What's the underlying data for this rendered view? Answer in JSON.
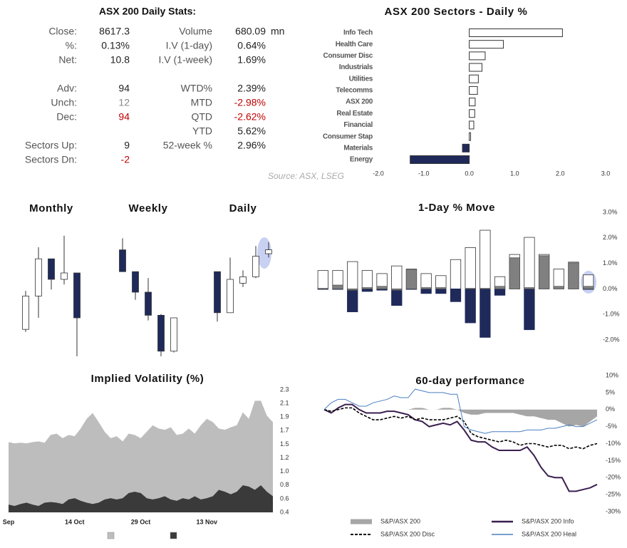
{
  "stats": {
    "title": "ASX 200 Daily Stats:",
    "rows": [
      {
        "left": {
          "label": "Close:",
          "value": "8617.3"
        },
        "right": {
          "label": "Volume",
          "value": "680.09",
          "unit": "mn"
        }
      },
      {
        "left": {
          "label": "%:",
          "value": "0.13%"
        },
        "right": {
          "label": "I.V (1-day)",
          "value": "0.64%"
        }
      },
      {
        "left": {
          "label": "Net:",
          "value": "10.8"
        },
        "right": {
          "label": "I.V (1-week)",
          "value": "1.69%"
        }
      },
      {
        "left": {
          "label": "Adv:",
          "value": "94"
        },
        "right": {
          "label": "WTD%",
          "value": "2.39%"
        }
      },
      {
        "left": {
          "label": "Unch:",
          "value": "12",
          "color": "#888888"
        },
        "right": {
          "label": "MTD",
          "value": "-2.98%",
          "color": "#c00000"
        }
      },
      {
        "left": {
          "label": "Dec:",
          "value": "94",
          "color": "#c00000"
        },
        "right": {
          "label": "QTD",
          "value": "-2.62%",
          "color": "#c00000"
        }
      },
      {
        "right": {
          "label": "YTD",
          "value": "5.62%"
        }
      },
      {
        "left": {
          "label": "Sectors Up:",
          "value": "9"
        },
        "right": {
          "label": "52-week %",
          "value": "2.96%"
        }
      },
      {
        "left": {
          "label": "Sectors Dn:",
          "value": "-2",
          "color": "#c00000"
        }
      }
    ]
  },
  "source": "Source: ASX, LSEG",
  "chart_data": [
    {
      "type": "bar",
      "orientation": "horizontal",
      "title": "ASX 200 Sectors - Daily %",
      "categories": [
        "Info Tech",
        "Health Care",
        "Consumer Disc",
        "Industrials",
        "Utilities",
        "Telecomms",
        "ASX 200",
        "Real Estate",
        "Financial",
        "Consumer Stap",
        "Materials",
        "Energy"
      ],
      "values": [
        2.05,
        0.75,
        0.35,
        0.28,
        0.2,
        0.18,
        0.13,
        0.12,
        0.1,
        0.03,
        -0.15,
        -1.3
      ],
      "positive_color": "#ffffff",
      "negative_color": "#1f2a5a",
      "edgecolor": "#333333",
      "xlim": [
        -2,
        3
      ],
      "xticks": [
        {
          "value": -2,
          "label": "-2.0"
        },
        {
          "value": -1,
          "label": "-1.0"
        },
        {
          "value": 0,
          "label": "0.0"
        },
        {
          "value": 1,
          "label": "1.0"
        },
        {
          "value": 2,
          "label": "2.0"
        },
        {
          "value": 3,
          "label": "3.0"
        }
      ]
    },
    {
      "type": "candlestick",
      "title": "Monthly",
      "ylim": [
        0,
        100
      ],
      "up_color": "#ffffff",
      "down_color": "#1f2a5a",
      "edgecolor": "#333333",
      "candles": [
        {
          "open": 21,
          "high": 51,
          "low": 19,
          "close": 47
        },
        {
          "open": 47,
          "high": 85,
          "low": 30,
          "close": 76
        },
        {
          "open": 76,
          "high": 76,
          "low": 52,
          "close": 60
        },
        {
          "open": 60,
          "high": 94,
          "low": 56,
          "close": 65
        },
        {
          "open": 65,
          "high": 65,
          "low": 0,
          "close": 30
        }
      ]
    },
    {
      "type": "candlestick",
      "title": "Weekly",
      "ylim": [
        0,
        100
      ],
      "up_color": "#ffffff",
      "down_color": "#1f2a5a",
      "edgecolor": "#333333",
      "candles": [
        {
          "open": 83,
          "high": 92,
          "low": 66,
          "close": 66
        },
        {
          "open": 66,
          "high": 66,
          "low": 44,
          "close": 50
        },
        {
          "open": 50,
          "high": 61,
          "low": 28,
          "close": 32
        },
        {
          "open": 32,
          "high": 33,
          "low": 0,
          "close": 4
        },
        {
          "open": 4,
          "high": 30,
          "low": 3,
          "close": 30
        }
      ]
    },
    {
      "type": "candlestick",
      "title": "Daily",
      "ylim": [
        0,
        100
      ],
      "up_color": "#ffffff",
      "down_color": "#1f2a5a",
      "edgecolor": "#333333",
      "candles": [
        {
          "open": 66,
          "high": 66,
          "low": 27,
          "close": 34
        },
        {
          "open": 34,
          "high": 77,
          "low": 34,
          "close": 60
        },
        {
          "open": 57,
          "high": 67,
          "low": 54,
          "close": 62
        },
        {
          "open": 62,
          "high": 86,
          "low": 61,
          "close": 78
        },
        {
          "open": 80,
          "high": 89,
          "low": 77,
          "close": 83
        }
      ]
    },
    {
      "type": "bar",
      "orientation": "vertical",
      "title": "1-Day % Move",
      "series": [
        {
          "color": "#ffffff",
          "edgecolor": "#333333",
          "values": [
            0.72,
            0.72,
            1.07,
            0.72,
            0.6,
            0.9,
            0.78,
            0.6,
            0.52,
            1.15,
            1.62,
            2.3,
            0.48,
            1.35,
            2.02,
            1.35,
            0.78,
            1.05,
            0.55
          ]
        },
        {
          "color": "#1f2a5a",
          "edgecolor": "#1f2a5a",
          "values": [
            -0.02,
            -0.02,
            -0.9,
            -0.1,
            -0.05,
            -0.65,
            -0.02,
            -0.18,
            -0.18,
            -0.5,
            -1.33,
            -1.9,
            -0.25,
            0,
            -1.6,
            0,
            0,
            0,
            -0.02
          ]
        },
        {
          "color": "#808080",
          "edgecolor": "#555555",
          "values": [
            0.02,
            0.15,
            -0.05,
            0.05,
            0.1,
            -0.05,
            0.75,
            0.05,
            0.05,
            0,
            0.02,
            0.02,
            0.1,
            1.22,
            0.05,
            1.3,
            0.1,
            1.02,
            0.1
          ]
        }
      ],
      "ylim": [
        -2,
        3
      ],
      "yticks": [
        {
          "value": 3,
          "label": "3.0%"
        },
        {
          "value": 2,
          "label": "2.0%"
        },
        {
          "value": 1,
          "label": "1.0%"
        },
        {
          "value": 0,
          "label": "0.0%"
        },
        {
          "value": -1,
          "label": "-1.0%"
        },
        {
          "value": -2,
          "label": "-2.0%"
        }
      ]
    },
    {
      "type": "area",
      "title": "Implied Volatility (%)",
      "categories": [
        "Sep",
        null,
        null,
        null,
        null,
        null,
        null,
        null,
        null,
        null,
        null,
        "14 Oct",
        null,
        null,
        null,
        null,
        null,
        null,
        null,
        null,
        null,
        null,
        "29 Oct",
        null,
        null,
        null,
        null,
        null,
        null,
        null,
        null,
        null,
        null,
        "13 Nov",
        null,
        null,
        null,
        null,
        null,
        null,
        null,
        null,
        null,
        null,
        null
      ],
      "series": [
        {
          "color": "#bdbdbd",
          "values": [
            1.49,
            1.47,
            1.48,
            1.47,
            1.49,
            1.5,
            1.48,
            1.6,
            1.62,
            1.55,
            1.6,
            1.58,
            1.7,
            1.85,
            1.94,
            1.8,
            1.65,
            1.55,
            1.58,
            1.5,
            1.62,
            1.6,
            1.55,
            1.65,
            1.75,
            1.7,
            1.68,
            1.72,
            1.6,
            1.62,
            1.7,
            1.62,
            1.75,
            1.85,
            1.8,
            1.7,
            1.68,
            1.72,
            1.75,
            1.95,
            1.85,
            2.13,
            2.13,
            1.9,
            1.8
          ]
        },
        {
          "color": "#3a3a3a",
          "values": [
            0.52,
            0.5,
            0.53,
            0.55,
            0.52,
            0.5,
            0.55,
            0.56,
            0.55,
            0.53,
            0.6,
            0.62,
            0.58,
            0.55,
            0.53,
            0.55,
            0.6,
            0.62,
            0.6,
            0.62,
            0.7,
            0.72,
            0.7,
            0.62,
            0.6,
            0.62,
            0.65,
            0.6,
            0.58,
            0.62,
            0.6,
            0.65,
            0.6,
            0.62,
            0.65,
            0.75,
            0.72,
            0.68,
            0.72,
            0.82,
            0.8,
            0.75,
            0.82,
            0.72,
            0.65
          ]
        }
      ],
      "ylim": [
        0.4,
        2.3
      ],
      "yticks": [
        {
          "value": 2.3,
          "label": "2.3"
        },
        {
          "value": 2.089,
          "label": "2.1"
        },
        {
          "value": 1.878,
          "label": "1.9"
        },
        {
          "value": 1.667,
          "label": "1.7"
        },
        {
          "value": 1.456,
          "label": "1.5"
        },
        {
          "value": 1.244,
          "label": "1.2"
        },
        {
          "value": 1.033,
          "label": "1.0"
        },
        {
          "value": 0.822,
          "label": "0.8"
        },
        {
          "value": 0.611,
          "label": "0.6"
        },
        {
          "value": 0.4,
          "label": "0.4"
        }
      ]
    },
    {
      "type": "line",
      "title": "60-day performance",
      "series": [
        {
          "name": "S&P/ASX 200",
          "color": "#a6a6a6",
          "fill": true,
          "values": [
            0,
            0,
            0,
            0,
            0,
            0,
            0,
            0,
            0,
            0,
            0,
            0,
            0,
            0.5,
            0.5,
            0,
            0,
            0.5,
            0.5,
            0,
            -1,
            -1.5,
            -1.5,
            -1,
            -1,
            -1,
            -1,
            -1,
            -1.5,
            -2,
            -2,
            -2.5,
            -3,
            -3,
            -4,
            -5,
            -4.5,
            -5,
            -3.5,
            -2
          ]
        },
        {
          "name": "S&P/ASX 200 Info",
          "color": "#3b1f4f",
          "width": 2,
          "values": [
            0,
            -1,
            0.5,
            1.5,
            1.5,
            0,
            -1,
            -1,
            -1,
            -0.5,
            -0.5,
            -1,
            -1.5,
            -3,
            -3.5,
            -5,
            -4.5,
            -4,
            -4.5,
            -3.5,
            -6,
            -9,
            -9.5,
            -9.5,
            -11,
            -12,
            -12,
            -12,
            -12,
            -11,
            -13.5,
            -17,
            -19.5,
            -20,
            -20,
            -24,
            -24,
            -23.5,
            -23,
            -22
          ]
        },
        {
          "name": "S&P/ASX 200 Disc",
          "color": "#000000",
          "width": 1.6,
          "dashed": true,
          "values": [
            0,
            -0.5,
            0,
            0.5,
            0.5,
            -1,
            -2,
            -3,
            -3,
            -2.5,
            -2,
            -2.5,
            -2,
            -3,
            -2.5,
            -3,
            -3,
            -3,
            -2.5,
            -2,
            -3.5,
            -7,
            -8,
            -8.5,
            -9,
            -9.5,
            -9,
            -9.5,
            -10.5,
            -10,
            -10,
            -10.5,
            -11,
            -10.5,
            -10.5,
            -11.5,
            -11,
            -11.5,
            -10.5,
            -10
          ]
        },
        {
          "name": "S&P/ASX 200 Heal",
          "color": "#4a7fc1",
          "width": 1,
          "values": [
            0,
            2,
            3,
            3,
            2,
            1,
            1,
            2,
            2.5,
            3,
            4,
            3.5,
            3.5,
            6,
            5.5,
            5,
            5,
            5,
            4.5,
            4.5,
            -5,
            -6,
            -6.5,
            -7,
            -6.5,
            -6.5,
            -6.5,
            -6.5,
            -6.5,
            -6,
            -6,
            -6,
            -5.5,
            -5.5,
            -5,
            -4.5,
            -5,
            -5,
            -4,
            -3
          ]
        }
      ],
      "ylim": [
        -30,
        10
      ],
      "yticks": [
        {
          "value": 10,
          "label": "10%"
        },
        {
          "value": 5,
          "label": "5%"
        },
        {
          "value": 0,
          "label": "0%"
        },
        {
          "value": -5,
          "label": "-5%"
        },
        {
          "value": -10,
          "label": "-10%"
        },
        {
          "value": -15,
          "label": "-15%"
        },
        {
          "value": -20,
          "label": "-20%"
        },
        {
          "value": -25,
          "label": "-25%"
        },
        {
          "value": -30,
          "label": "-30%"
        }
      ]
    }
  ]
}
